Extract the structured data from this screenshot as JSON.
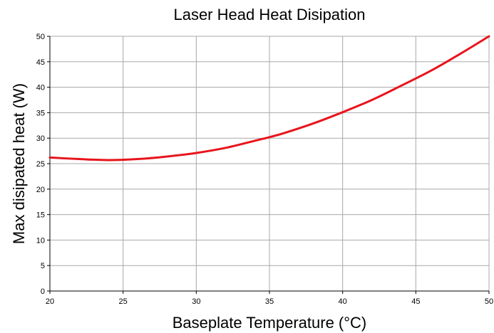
{
  "chart_data": {
    "type": "line",
    "title": "Laser Head Heat Disipation",
    "xlabel": "Baseplate Temperature (°C)",
    "ylabel": "Max disipated heat (W)",
    "xlim": [
      20,
      50
    ],
    "ylim": [
      0,
      50
    ],
    "xticks": [
      20,
      25,
      30,
      35,
      40,
      45,
      50
    ],
    "yticks": [
      0,
      5,
      10,
      15,
      20,
      25,
      30,
      35,
      40,
      45,
      50
    ],
    "grid": true,
    "series": [
      {
        "color": "#e8141c",
        "x": [
          20,
          22,
          24,
          26,
          28,
          30,
          32,
          34,
          35,
          36,
          38,
          40,
          42,
          44,
          46,
          48,
          50
        ],
        "y": [
          26.2,
          25.9,
          25.7,
          25.9,
          26.4,
          27.1,
          28.1,
          29.5,
          30.2,
          31.0,
          32.9,
          35.1,
          37.5,
          40.3,
          43.2,
          46.5,
          50.0
        ]
      }
    ]
  }
}
